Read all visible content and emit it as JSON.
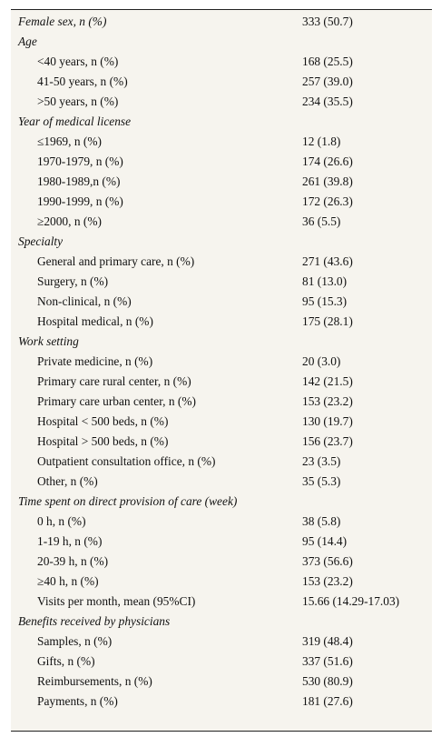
{
  "rows": [
    {
      "type": "first",
      "label": "Female sex, n (%)",
      "value": "333 (50.7)"
    },
    {
      "type": "section",
      "label": "Age",
      "value": ""
    },
    {
      "type": "sub",
      "label": "<40 years, n (%)",
      "value": "168 (25.5)"
    },
    {
      "type": "sub",
      "label": "41-50 years, n (%)",
      "value": "257 (39.0)"
    },
    {
      "type": "sub",
      "label": ">50 years, n (%)",
      "value": "234 (35.5)"
    },
    {
      "type": "section",
      "label": "Year of medical license",
      "value": ""
    },
    {
      "type": "sub",
      "label": "≤1969, n (%)",
      "value": "12 (1.8)"
    },
    {
      "type": "sub",
      "label": "1970-1979, n (%)",
      "value": "174 (26.6)"
    },
    {
      "type": "sub",
      "label": "1980-1989,n (%)",
      "value": "261 (39.8)"
    },
    {
      "type": "sub",
      "label": "1990-1999, n (%)",
      "value": "172 (26.3)"
    },
    {
      "type": "sub",
      "label": "≥2000, n (%)",
      "value": "36 (5.5)"
    },
    {
      "type": "section",
      "label": "Specialty",
      "value": ""
    },
    {
      "type": "sub",
      "label": "General and primary care, n (%)",
      "value": "271 (43.6)"
    },
    {
      "type": "sub",
      "label": "Surgery, n (%)",
      "value": "81 (13.0)"
    },
    {
      "type": "sub",
      "label": "Non-clinical, n (%)",
      "value": "95 (15.3)"
    },
    {
      "type": "sub",
      "label": "Hospital medical, n (%)",
      "value": "175 (28.1)"
    },
    {
      "type": "section",
      "label": "Work setting",
      "value": ""
    },
    {
      "type": "sub",
      "label": "Private medicine, n (%)",
      "value": "20 (3.0)"
    },
    {
      "type": "sub",
      "label": "Primary care rural center, n (%)",
      "value": "142 (21.5)"
    },
    {
      "type": "sub",
      "label": "Primary care urban center, n (%)",
      "value": "153 (23.2)"
    },
    {
      "type": "sub",
      "label": "Hospital < 500 beds, n (%)",
      "value": "130 (19.7)"
    },
    {
      "type": "sub",
      "label": "Hospital > 500 beds, n (%)",
      "value": "156 (23.7)"
    },
    {
      "type": "sub",
      "label": "Outpatient consultation office, n (%)",
      "value": "23 (3.5)"
    },
    {
      "type": "sub",
      "label": "Other, n (%)",
      "value": "35 (5.3)"
    },
    {
      "type": "section",
      "label": "Time spent on direct provision of care (week)",
      "value": ""
    },
    {
      "type": "sub",
      "label": "0 h, n (%)",
      "value": "38 (5.8)"
    },
    {
      "type": "sub",
      "label": "1-19 h, n (%)",
      "value": "95 (14.4)"
    },
    {
      "type": "sub",
      "label": "20-39 h, n (%)",
      "value": "373 (56.6)"
    },
    {
      "type": "sub",
      "label": "≥40 h, n (%)",
      "value": "153 (23.2)"
    },
    {
      "type": "sub",
      "label": "Visits per month, mean (95%CI)",
      "value": "15.66 (14.29-17.03)"
    },
    {
      "type": "section",
      "label": "Benefits received by physicians",
      "value": ""
    },
    {
      "type": "sub",
      "label": "Samples, n (%)",
      "value": "319 (48.4)"
    },
    {
      "type": "sub",
      "label": "Gifts, n (%)",
      "value": "337 (51.6)"
    },
    {
      "type": "sub",
      "label": "Reimbursements, n (%)",
      "value": "530 (80.9)"
    },
    {
      "type": "sub",
      "label": "Payments, n (%)",
      "value": "181 (27.6)"
    }
  ]
}
